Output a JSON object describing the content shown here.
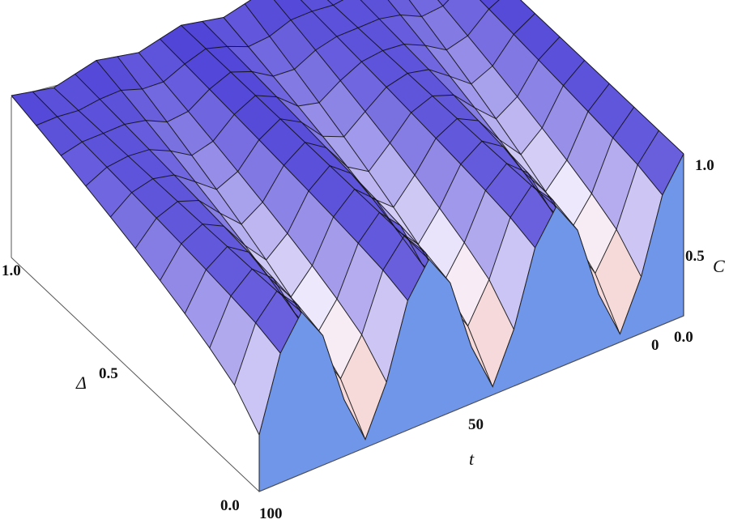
{
  "chart_data": {
    "type": "surface3d",
    "axes": {
      "t": {
        "label": "t",
        "ticks": [
          "0",
          "50",
          "100"
        ],
        "range": [
          0,
          100
        ]
      },
      "delta": {
        "label": "Δ",
        "ticks": [
          "0.0",
          "0.5",
          "1.0"
        ],
        "range": [
          0,
          1
        ]
      },
      "c": {
        "label": "C",
        "ticks": [
          "0.0",
          "0.5",
          "1.0"
        ],
        "range": [
          0,
          1
        ]
      }
    },
    "surface_profile": {
      "t": [
        0,
        5,
        10,
        15,
        20,
        25,
        30,
        35,
        40,
        45,
        50,
        55,
        60,
        65,
        70,
        75,
        80,
        85,
        90,
        95,
        100
      ],
      "delta_0": [
        1.0,
        0.8,
        0.35,
        0.05,
        0.35,
        0.8,
        1.0,
        0.8,
        0.35,
        0.05,
        0.35,
        0.8,
        1.0,
        0.8,
        0.35,
        0.05,
        0.35,
        0.8,
        1.0,
        0.8,
        0.35
      ],
      "delta_1": [
        1.0,
        0.97,
        0.94,
        0.97,
        1.0,
        0.97,
        0.94,
        0.97,
        1.0,
        0.97,
        0.94,
        0.97,
        1.0,
        0.97,
        0.94,
        0.97,
        1.0,
        0.97,
        0.94,
        0.97,
        1.0
      ]
    },
    "colors": {
      "high": "#4a3fd6",
      "mid": "#f7f2ff",
      "low": "#f4b7a6",
      "cap": "#6f96e8",
      "mesh": "#111111"
    },
    "grid": false
  }
}
